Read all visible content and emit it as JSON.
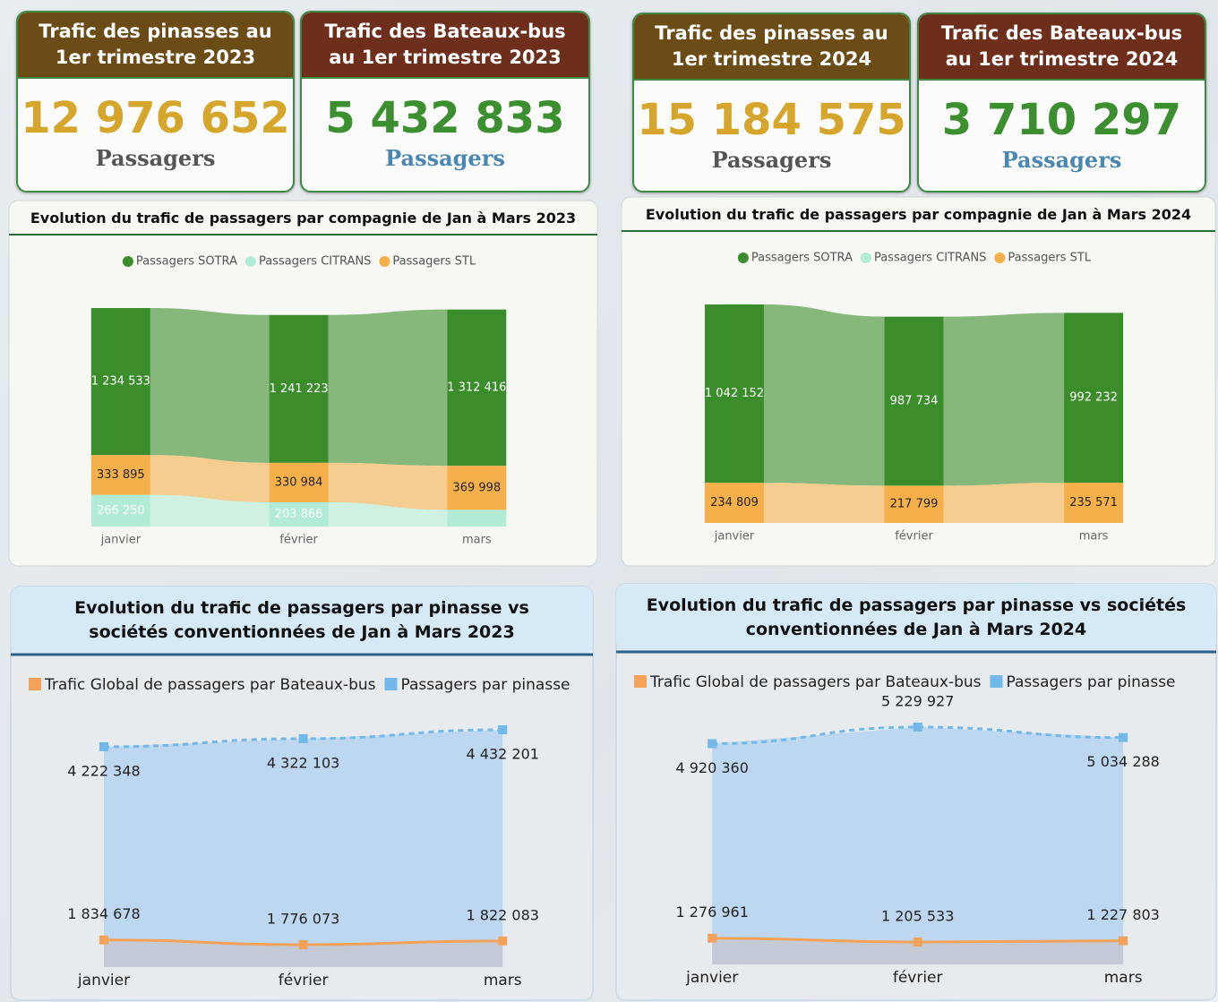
{
  "cards": [
    {
      "title": "Trafic des pinasses au 1er trimestre 2023",
      "value": "12 976 652",
      "unit": "Passagers"
    },
    {
      "title": "Trafic des Bateaux-bus au 1er trimestre 2023",
      "value": "5 432 833",
      "unit": "Passagers"
    },
    {
      "title": "Trafic des pinasses au 1er trimestre 2024",
      "value": "15 184 575",
      "unit": "Passagers"
    },
    {
      "title": "Trafic des Bateaux-bus au 1er trimestre 2024",
      "value": "3 710 297",
      "unit": "Passagers"
    }
  ],
  "chart_data": [
    {
      "type": "ribbon",
      "title": "Evolution du trafic de passagers par compagnie de Jan à Mars 2023",
      "categories": [
        "janvier",
        "février",
        "mars"
      ],
      "series": [
        {
          "name": "Passagers SOTRA",
          "color": "#3a8d2a",
          "values": [
            1234533,
            1241223,
            1312416
          ],
          "value_labels": [
            "1 234 533",
            "1 241 223",
            "1 312 416"
          ]
        },
        {
          "name": "Passagers CITRANS",
          "color": "#b3ecd6",
          "values": [
            266250,
            203866,
            139669
          ],
          "value_labels": [
            "266 250",
            "203 866",
            null
          ]
        },
        {
          "name": "Passagers STL",
          "color": "#f5b04c",
          "values": [
            333895,
            330984,
            369998
          ],
          "value_labels": [
            "333 895",
            "330 984",
            "369 998"
          ]
        }
      ]
    },
    {
      "type": "ribbon",
      "title": "Evolution du trafic de passagers par compagnie de Jan à Mars 2024",
      "categories": [
        "janvier",
        "février",
        "mars"
      ],
      "series": [
        {
          "name": "Passagers SOTRA",
          "color": "#3a8d2a",
          "values": [
            1042152,
            987734,
            992232
          ],
          "value_labels": [
            "1 042 152",
            "987 734",
            "992 232"
          ]
        },
        {
          "name": "Passagers CITRANS",
          "color": "#b3ecd6",
          "values": [
            0,
            0,
            0
          ]
        },
        {
          "name": "Passagers STL",
          "color": "#f5b04c",
          "values": [
            234809,
            217799,
            235571
          ],
          "value_labels": [
            "234 809",
            "217 799",
            "235 571"
          ]
        }
      ]
    },
    {
      "type": "line",
      "title": "Evolution du trafic de passagers par pinasse vs sociétés conventionnées de Jan à Mars 2023",
      "categories": [
        "janvier",
        "février",
        "mars"
      ],
      "series": [
        {
          "name": "Trafic Global de passagers par Bateaux-bus",
          "color": "#f4a25a",
          "line_style": "solid",
          "values": [
            1834678,
            1776073,
            1822083
          ],
          "value_labels": [
            "1 834 678",
            "1 776 073",
            "1 822 083"
          ]
        },
        {
          "name": "Passagers par pinasse",
          "color": "#72b8e8",
          "line_style": "dashed",
          "values": [
            4222348,
            4322103,
            4432201
          ],
          "value_labels": [
            "4 222 348",
            "4 322 103",
            "4 432 201"
          ]
        }
      ]
    },
    {
      "type": "line",
      "title": "Evolution du trafic de passagers par pinasse vs sociétés conventionnées de Jan à Mars 2024",
      "categories": [
        "janvier",
        "février",
        "mars"
      ],
      "series": [
        {
          "name": "Trafic Global de passagers par Bateaux-bus",
          "color": "#f4a25a",
          "line_style": "solid",
          "values": [
            1276961,
            1205533,
            1227803
          ],
          "value_labels": [
            "1 276 961",
            "1 205 533",
            "1 227 803"
          ]
        },
        {
          "name": "Passagers par pinasse",
          "color": "#72b8e8",
          "line_style": "dashed",
          "values": [
            4920360,
            5229927,
            5034288
          ],
          "value_labels": [
            "4 920 360",
            "5 229 927",
            "5 034 288"
          ]
        }
      ]
    }
  ]
}
